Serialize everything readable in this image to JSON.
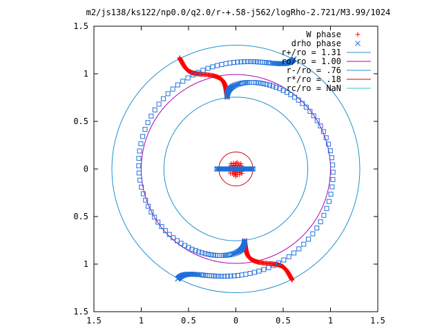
{
  "chart_data": {
    "type": "scatter",
    "title": "m2/js138/ks122/np0.0/q2.0/r-+.58-j562/logRho-2.721/M3.99/1024",
    "xlabel": "",
    "ylabel": "",
    "xlim": [
      -1.5,
      1.5
    ],
    "ylim": [
      -1.5,
      1.5
    ],
    "grid": false,
    "legend_position": "top-right",
    "x_ticks": [
      {
        "value": -1.5,
        "label": "1.5"
      },
      {
        "value": -1.0,
        "label": "1"
      },
      {
        "value": -0.5,
        "label": "0.5"
      },
      {
        "value": 0.0,
        "label": "0"
      },
      {
        "value": 0.5,
        "label": "0.5"
      },
      {
        "value": 1.0,
        "label": "1"
      },
      {
        "value": 1.5,
        "label": "1.5"
      }
    ],
    "y_ticks": [
      {
        "value": 1.5,
        "label": "1.5"
      },
      {
        "value": 1.0,
        "label": "1"
      },
      {
        "value": 0.5,
        "label": "0.5"
      },
      {
        "value": 0.0,
        "label": "0"
      },
      {
        "value": -0.5,
        "label": "0.5"
      },
      {
        "value": -1.0,
        "label": "1"
      },
      {
        "value": -1.5,
        "label": "1.5"
      }
    ],
    "series": [
      {
        "name": "W phase",
        "marker": "plus",
        "color": "#ff0000",
        "arms": [
          {
            "theta0_deg": 97,
            "r_start": 0.76,
            "r_end": 1.31,
            "sweep_deg": 20,
            "steepness": 14
          },
          {
            "theta0_deg": 277,
            "r_start": 0.76,
            "r_end": 1.31,
            "sweep_deg": 20,
            "steepness": 14
          }
        ],
        "inner_cluster": {
          "center": [
            0,
            0
          ],
          "radius": 0.08,
          "count": 40
        }
      },
      {
        "name": "drho phase",
        "marker": "cross",
        "color": "#1e6fd9",
        "arms": [
          {
            "theta0_deg": 97,
            "r_start": 0.76,
            "r_end": 1.31,
            "sweep_deg": -215,
            "steepness": 12
          },
          {
            "theta0_deg": 277,
            "r_start": 0.76,
            "r_end": 1.31,
            "sweep_deg": -215,
            "steepness": 12
          }
        ],
        "inner_bar": {
          "x_from": -0.2,
          "x_to": 0.18,
          "y": 0.0,
          "count": 30
        }
      }
    ],
    "circles": [
      {
        "name": "r+/ro = 1.31",
        "radius": 1.31,
        "color": "#1f8fcf"
      },
      {
        "name": "ro/ro = 1.00",
        "radius": 1.0,
        "color": "#b000b8"
      },
      {
        "name": "r-/ro = .76",
        "radius": 0.76,
        "color": "#1f8fcf"
      },
      {
        "name": "r*/ro = .18",
        "radius": 0.18,
        "color": "#d00000"
      },
      {
        "name": "rc/ro = NaN",
        "radius": null,
        "color": "#30c0d0"
      }
    ]
  }
}
